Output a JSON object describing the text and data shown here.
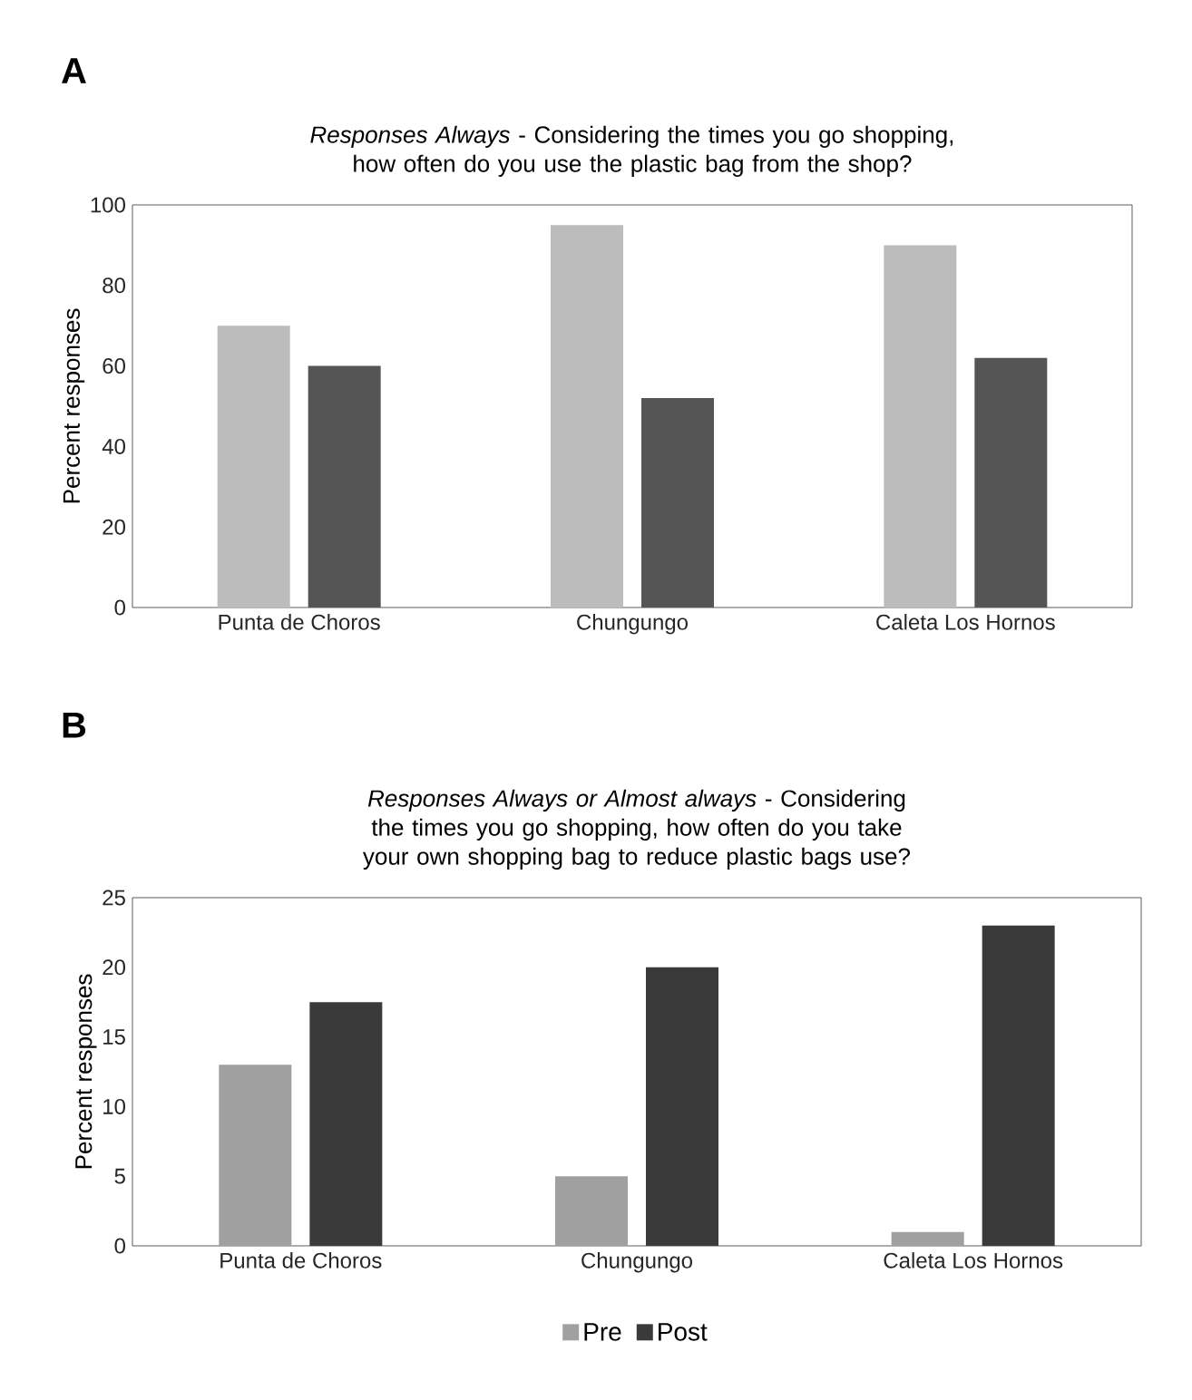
{
  "chart_data": [
    {
      "type": "bar",
      "title": "*Responses Always* - Considering the times you go shopping, how often do you use the plastic bag from the shop?",
      "ylabel": "Percent responses",
      "annotations": [
        "A"
      ],
      "categories": [
        "Punta de Choros",
        "Chungungo",
        "Caleta Los Hornos"
      ],
      "series": [
        {
          "color": "#bcbcbc",
          "values": [
            70,
            95,
            90
          ]
        },
        {
          "color": "#555555",
          "values": [
            60,
            52,
            62
          ]
        }
      ],
      "ylim": [
        0,
        100
      ],
      "yticks": [
        0,
        20,
        40,
        60,
        80,
        100
      ]
    },
    {
      "type": "bar",
      "title": "*Responses Always or Almost always* - Considering the times you go shopping, how often do you take your own shopping bag to reduce plastic bags use?",
      "ylabel": "Percent responses",
      "annotations": [
        "B"
      ],
      "categories": [
        "Punta de Choros",
        "Chungungo",
        "Caleta Los Hornos"
      ],
      "series": [
        {
          "name": "Pre",
          "color": "#a0a0a0",
          "values": [
            13,
            5,
            1
          ]
        },
        {
          "name": "Post",
          "color": "#3a3a3a",
          "values": [
            17.5,
            20,
            23
          ]
        }
      ],
      "ylim": [
        0,
        25
      ],
      "yticks": [
        0,
        5,
        10,
        15,
        20,
        25
      ],
      "legend": "bottom"
    }
  ]
}
